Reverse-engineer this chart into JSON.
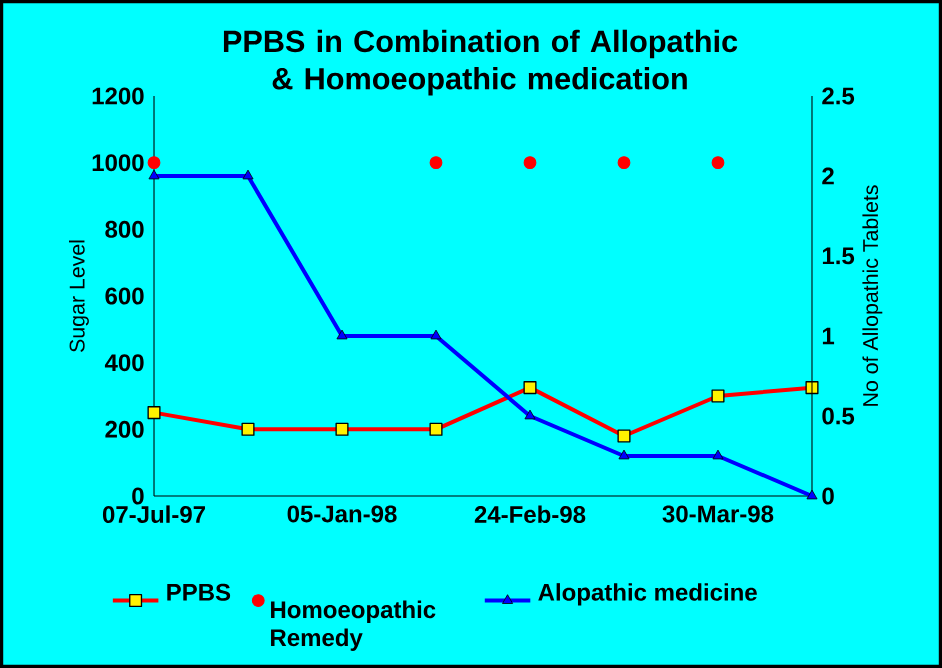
{
  "chart_data": {
    "type": "line",
    "title": "PPBS in Combination of Allopathic & Homoeopathic medication",
    "ylabel": "Sugar Level",
    "y2label": "No of Allopathic Tablets",
    "categories": [
      "07-Jul-97",
      null,
      "05-Jan-98",
      null,
      "24-Feb-98",
      null,
      "30-Mar-98",
      null
    ],
    "series": [
      {
        "name": "PPBS",
        "color": "#ff0000",
        "marker": "square",
        "values": [
          250,
          200,
          200,
          200,
          325,
          180,
          300,
          325
        ]
      },
      {
        "name": "Homoeopathic Remedy",
        "type": "scatter",
        "color": "#ff0000",
        "marker": "circle",
        "values": [
          1000,
          null,
          null,
          1000,
          1000,
          1000,
          1000,
          null
        ]
      },
      {
        "name": "Alopathic medicine",
        "color": "#0000ff",
        "marker": "triangle",
        "axis": "y2",
        "values": [
          2,
          2,
          1,
          1,
          0.5,
          0.25,
          0.25,
          0
        ]
      }
    ],
    "ylim": [
      0,
      1200
    ],
    "yticks": [
      0,
      200,
      400,
      600,
      800,
      1000,
      1200
    ],
    "y2lim": [
      0,
      2.5
    ],
    "y2ticks": [
      0,
      0.5,
      1,
      1.5,
      2,
      2.5
    ],
    "legend": "bottom",
    "grid": false
  }
}
